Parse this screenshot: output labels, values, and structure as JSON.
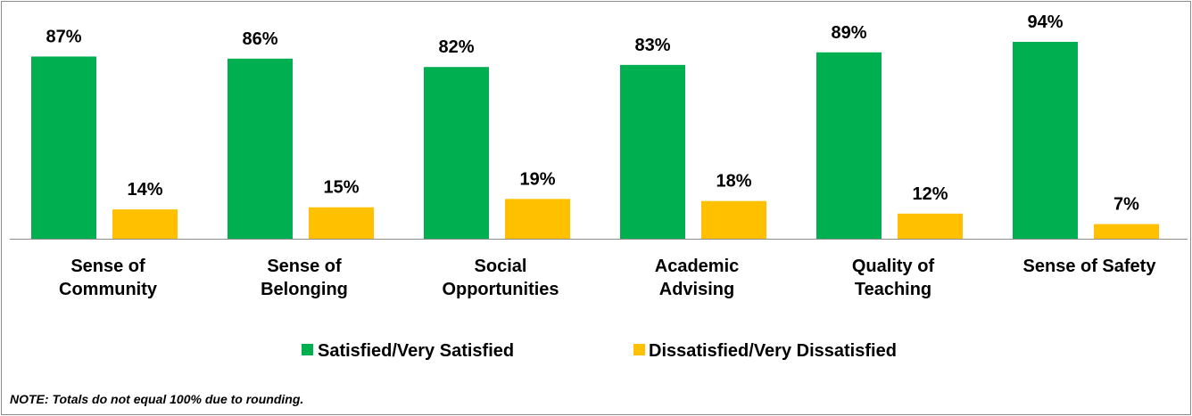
{
  "chart_data": {
    "type": "bar",
    "categories": [
      [
        "Sense of",
        "Community"
      ],
      [
        "Sense of",
        "Belonging"
      ],
      [
        "Social",
        "Opportunities"
      ],
      [
        "Academic",
        "Advising"
      ],
      [
        "Quality of",
        "Teaching"
      ],
      [
        "Sense of Safety"
      ]
    ],
    "series": [
      {
        "name": "Satisfied/Very Satisfied",
        "color": "#00b050",
        "values": [
          87,
          86,
          82,
          83,
          89,
          94
        ],
        "labels": [
          "87%",
          "86%",
          "82%",
          "83%",
          "89%",
          "94%"
        ]
      },
      {
        "name": "Dissatisfied/Very Dissatisfied",
        "color": "#ffc000",
        "values": [
          14,
          15,
          19,
          18,
          12,
          7
        ],
        "labels": [
          "14%",
          "15%",
          "19%",
          "18%",
          "12%",
          "7%"
        ]
      }
    ],
    "ylim": [
      0,
      100
    ],
    "grid": false,
    "legend_position": "bottom",
    "title": "",
    "xlabel": "",
    "ylabel": ""
  },
  "note": "NOTE: Totals do not equal 100% due to rounding."
}
